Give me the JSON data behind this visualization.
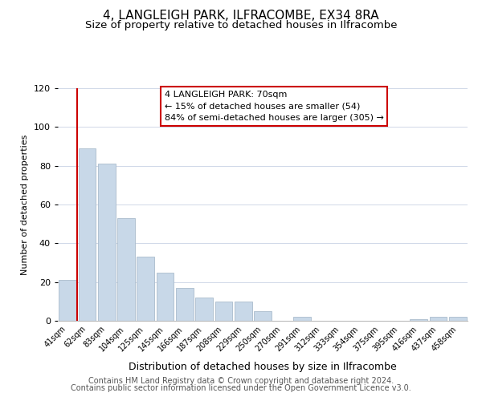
{
  "title": "4, LANGLEIGH PARK, ILFRACOMBE, EX34 8RA",
  "subtitle": "Size of property relative to detached houses in Ilfracombe",
  "xlabel": "Distribution of detached houses by size in Ilfracombe",
  "ylabel": "Number of detached properties",
  "bar_labels": [
    "41sqm",
    "62sqm",
    "83sqm",
    "104sqm",
    "125sqm",
    "145sqm",
    "166sqm",
    "187sqm",
    "208sqm",
    "229sqm",
    "250sqm",
    "270sqm",
    "291sqm",
    "312sqm",
    "333sqm",
    "354sqm",
    "375sqm",
    "395sqm",
    "416sqm",
    "437sqm",
    "458sqm"
  ],
  "bar_values": [
    21,
    89,
    81,
    53,
    33,
    25,
    17,
    12,
    10,
    10,
    5,
    0,
    2,
    0,
    0,
    0,
    0,
    0,
    1,
    2,
    2
  ],
  "bar_color": "#c8d8e8",
  "bar_edge_color": "#aabccc",
  "ylim": [
    0,
    120
  ],
  "yticks": [
    0,
    20,
    40,
    60,
    80,
    100,
    120
  ],
  "vline_x": 0.5,
  "vline_color": "#cc0000",
  "annotation_title": "4 LANGLEIGH PARK: 70sqm",
  "annotation_line1": "← 15% of detached houses are smaller (54)",
  "annotation_line2": "84% of semi-detached houses are larger (305) →",
  "annotation_box_color": "#ffffff",
  "annotation_box_edge": "#cc0000",
  "footer_line1": "Contains HM Land Registry data © Crown copyright and database right 2024.",
  "footer_line2": "Contains public sector information licensed under the Open Government Licence v3.0.",
  "title_fontsize": 11,
  "subtitle_fontsize": 9.5,
  "xlabel_fontsize": 9,
  "ylabel_fontsize": 8,
  "footer_fontsize": 7
}
